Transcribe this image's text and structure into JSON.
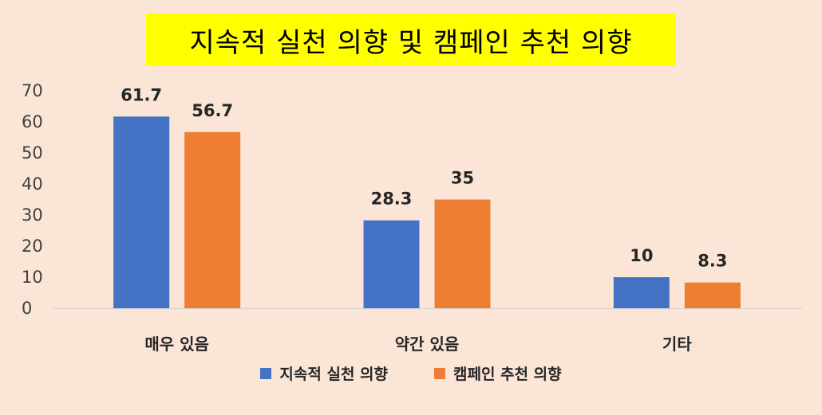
{
  "chart_data": {
    "type": "bar",
    "title": "지속적 실천 의향 및 캠페인 추천 의향",
    "categories": [
      "매우 있음",
      "약간 있음",
      "기타"
    ],
    "series": [
      {
        "name": "지속적 실천 의향",
        "values": [
          61.7,
          28.3,
          10
        ],
        "labels": [
          "61.7",
          "28.3",
          "10"
        ],
        "color": "#4472c4"
      },
      {
        "name": "캠페인 추천 의향",
        "values": [
          56.7,
          35,
          8.3
        ],
        "labels": [
          "56.7",
          "35",
          "8.3"
        ],
        "color": "#ed7d31"
      }
    ],
    "ylim": [
      0,
      70
    ],
    "yticks": [
      "0",
      "10",
      "20",
      "30",
      "40",
      "50",
      "60",
      "70"
    ],
    "xlabel": "",
    "ylabel": "",
    "grid": false,
    "legend": "bottom",
    "title_highlight": "#ffff00"
  }
}
